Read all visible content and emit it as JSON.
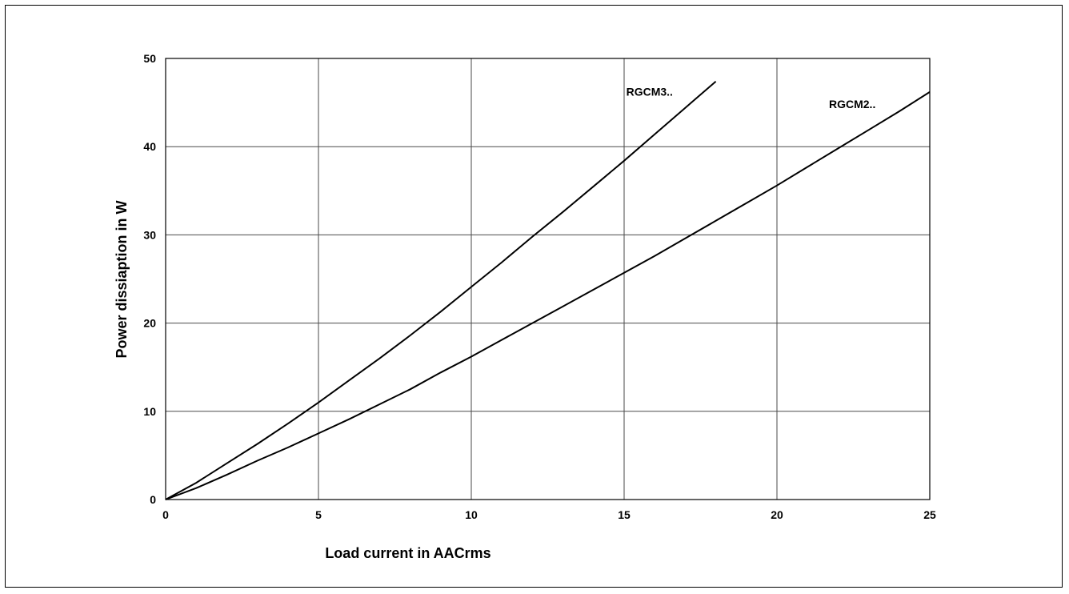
{
  "chart_data": {
    "type": "line",
    "title": "",
    "xlabel": "Load current in AACrms",
    "ylabel": "Power dissiaption in W",
    "xlim": [
      0,
      25
    ],
    "ylim": [
      0,
      50
    ],
    "xticks": [
      0,
      5,
      10,
      15,
      20,
      25
    ],
    "yticks": [
      0,
      10,
      20,
      30,
      40,
      50
    ],
    "grid": true,
    "legend": "inline labels",
    "series": [
      {
        "name": "RGCM3..",
        "color": "#000000",
        "x": [
          0,
          1,
          2,
          3,
          4,
          5,
          6,
          7,
          8,
          9,
          10,
          11,
          12,
          13,
          14,
          15,
          16,
          17,
          18
        ],
        "y": [
          0,
          1.9,
          4.1,
          6.3,
          8.6,
          11.0,
          13.5,
          16.0,
          18.6,
          21.3,
          24.1,
          26.9,
          29.8,
          32.6,
          35.5,
          38.4,
          41.4,
          44.4,
          47.4
        ]
      },
      {
        "name": "RGCM2..",
        "color": "#000000",
        "x": [
          0,
          1,
          2,
          3,
          4,
          5,
          6,
          7,
          8,
          9,
          10,
          11,
          12,
          13,
          14,
          15,
          16,
          17,
          18,
          19,
          20,
          21,
          22,
          23,
          24,
          25
        ],
        "y": [
          0,
          1.3,
          2.8,
          4.4,
          5.9,
          7.5,
          9.1,
          10.8,
          12.5,
          14.4,
          16.2,
          18.1,
          20.0,
          21.9,
          23.8,
          25.7,
          27.6,
          29.6,
          31.6,
          33.6,
          35.6,
          37.7,
          39.8,
          41.9,
          44.0,
          46.2
        ]
      }
    ]
  }
}
